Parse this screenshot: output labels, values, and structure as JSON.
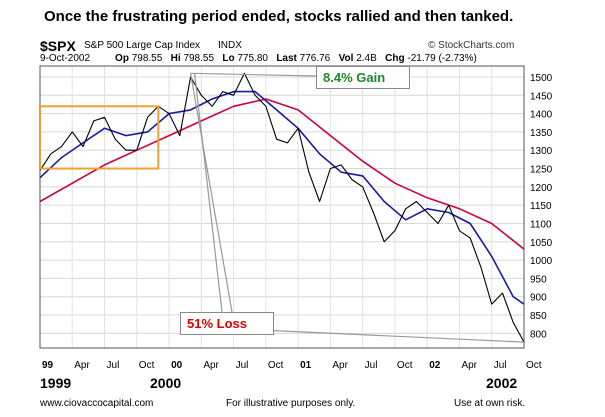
{
  "headline": "Once the frustrating period ended, stocks rallied and then tanked.",
  "symbol": "$SPX",
  "index_name": "S&P 500 Large Cap Index",
  "exchange": "INDX",
  "credit": "© StockCharts.com",
  "quote": {
    "date": "9-Oct-2002",
    "op_label": "Op",
    "op": "798.55",
    "hi_label": "Hi",
    "hi": "798.55",
    "lo_label": "Lo",
    "lo": "775.80",
    "last_label": "Last",
    "last": "776.76",
    "vol_label": "Vol",
    "vol": "2.4B",
    "chg_label": "Chg",
    "chg": "-21.79 (-2.73%)"
  },
  "annotations": {
    "gain": "8.4% Gain",
    "loss": "51% Loss"
  },
  "years": {
    "y1999": "1999",
    "y2000": "2000",
    "y2002": "2002"
  },
  "footer": {
    "left": "www.ciovaccocapital.com",
    "middle": "For illustrative purposes only.",
    "right": "Use at own risk."
  },
  "colors": {
    "price": "#000000",
    "ma_short": "#1a1aa6",
    "ma_long": "#d0003c",
    "box": "#f0a030",
    "gain": "#1a8a2a",
    "loss": "#e00000"
  },
  "chart_data": {
    "type": "line",
    "title": "",
    "xlabel": "",
    "ylabel": "",
    "ylim": [
      760,
      1530
    ],
    "y_ticks": [
      800,
      850,
      900,
      950,
      1000,
      1050,
      1100,
      1150,
      1200,
      1250,
      1300,
      1350,
      1400,
      1450,
      1500
    ],
    "x_range_months": [
      "Jan 1999",
      "Oct 2002"
    ],
    "x_tick_labels": [
      "99",
      "Apr",
      "Jul",
      "Oct",
      "00",
      "Apr",
      "Jul",
      "Oct",
      "01",
      "Apr",
      "Jul",
      "Oct",
      "02",
      "Apr",
      "Jul",
      "Oct"
    ],
    "x_tick_bold": [
      true,
      false,
      false,
      false,
      true,
      false,
      false,
      false,
      true,
      false,
      false,
      false,
      true,
      false,
      false,
      false
    ],
    "grid": true,
    "series": [
      {
        "key": "price",
        "x": [
          "1999-01",
          "1999-02",
          "1999-03",
          "1999-04",
          "1999-05",
          "1999-06",
          "1999-07",
          "1999-08",
          "1999-09",
          "1999-10",
          "1999-11",
          "1999-12",
          "2000-01",
          "2000-02",
          "2000-03",
          "2000-04",
          "2000-05",
          "2000-06",
          "2000-07",
          "2000-08",
          "2000-09",
          "2000-10",
          "2000-11",
          "2000-12",
          "2001-01",
          "2001-02",
          "2001-03",
          "2001-04",
          "2001-05",
          "2001-06",
          "2001-07",
          "2001-08",
          "2001-09",
          "2001-10",
          "2001-11",
          "2001-12",
          "2002-01",
          "2002-02",
          "2002-03",
          "2002-04",
          "2002-05",
          "2002-06",
          "2002-07",
          "2002-08",
          "2002-09",
          "2002-10"
        ],
        "values": [
          1245,
          1290,
          1310,
          1350,
          1310,
          1380,
          1390,
          1330,
          1300,
          1300,
          1390,
          1420,
          1400,
          1340,
          1500,
          1450,
          1420,
          1460,
          1450,
          1510,
          1450,
          1420,
          1330,
          1320,
          1360,
          1240,
          1160,
          1250,
          1260,
          1220,
          1200,
          1130,
          1050,
          1080,
          1140,
          1160,
          1130,
          1100,
          1150,
          1080,
          1060,
          980,
          880,
          910,
          830,
          776
        ]
      },
      {
        "key": "ma_short",
        "x": [
          "1999-01",
          "1999-03",
          "1999-05",
          "1999-07",
          "1999-09",
          "1999-11",
          "2000-01",
          "2000-03",
          "2000-05",
          "2000-07",
          "2000-09",
          "2000-11",
          "2001-01",
          "2001-03",
          "2001-05",
          "2001-07",
          "2001-09",
          "2001-11",
          "2002-01",
          "2002-03",
          "2002-05",
          "2002-07",
          "2002-09",
          "2002-10"
        ],
        "values": [
          1225,
          1280,
          1320,
          1360,
          1340,
          1350,
          1400,
          1410,
          1440,
          1460,
          1460,
          1410,
          1360,
          1290,
          1240,
          1230,
          1160,
          1110,
          1140,
          1130,
          1100,
          1010,
          900,
          880
        ]
      },
      {
        "key": "ma_long",
        "x": [
          "1999-01",
          "1999-04",
          "1999-07",
          "1999-10",
          "2000-01",
          "2000-04",
          "2000-07",
          "2000-10",
          "2001-01",
          "2001-04",
          "2001-07",
          "2001-10",
          "2002-01",
          "2002-04",
          "2002-07",
          "2002-10"
        ],
        "values": [
          1160,
          1210,
          1260,
          1300,
          1340,
          1380,
          1420,
          1440,
          1410,
          1340,
          1270,
          1210,
          1170,
          1140,
          1100,
          1030
        ]
      }
    ]
  }
}
